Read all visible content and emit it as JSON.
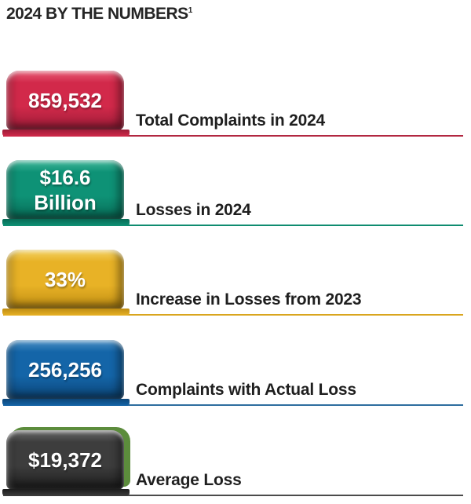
{
  "header": {
    "title": "2024 BY THE NUMBERS",
    "superscript": "1"
  },
  "rows": [
    {
      "value": "859,532",
      "label": "Total Complaints in 2024",
      "color": "#D2294A",
      "dark": "#9C1C38",
      "light": "#E9607A",
      "line": "#B22741"
    },
    {
      "value": "$16.6\nBillion",
      "label": "Losses in 2024",
      "color": "#0E9276",
      "dark": "#086A55",
      "light": "#45B99C",
      "line": "#0F8C70"
    },
    {
      "value": "33%",
      "label": "Increase in Losses from 2023",
      "color": "#E8B226",
      "dark": "#BE8C12",
      "light": "#F4D468",
      "line": "#D9A51E"
    },
    {
      "value": "256,256",
      "label": "Complaints with Actual Loss",
      "color": "#1465A8",
      "dark": "#0C4577",
      "light": "#4E92C6",
      "line": "#2E6E9F"
    },
    {
      "value": "$19,372",
      "label": "Average Loss",
      "color": "#3D3D3D",
      "dark": "#1C1C1C",
      "light": "#6A6A6A",
      "line": "#4B4B4B",
      "rim": "#5C8C3C"
    }
  ],
  "chart_data": {
    "type": "table",
    "title": "2024 BY THE NUMBERS",
    "footnote_marker": "1",
    "categories": [
      "Total Complaints in 2024",
      "Losses in 2024",
      "Increase in Losses from 2023",
      "Complaints with Actual Loss",
      "Average Loss"
    ],
    "values": [
      "859,532",
      "$16.6 Billion",
      "33%",
      "256,256",
      "$19,372"
    ],
    "numeric_values": [
      859532,
      16600000000,
      33,
      256256,
      19372
    ],
    "colors": [
      "#D2294A",
      "#0E9276",
      "#E8B226",
      "#1465A8",
      "#3D3D3D"
    ],
    "legend_position": "none",
    "grid": false
  }
}
